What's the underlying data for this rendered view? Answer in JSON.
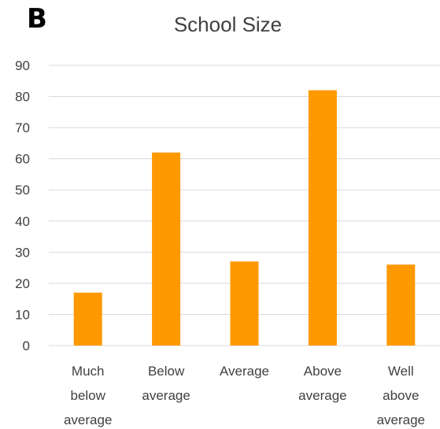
{
  "panel_label": "B",
  "chart_data": {
    "type": "bar",
    "title": "School Size",
    "xlabel": "",
    "ylabel": "",
    "categories": [
      "Much below average",
      "Below average",
      "Average",
      "Above average",
      "Well above average"
    ],
    "category_lines": [
      [
        "Much",
        "below",
        "average"
      ],
      [
        "Below",
        "average"
      ],
      [
        "Average"
      ],
      [
        "Above",
        "average"
      ],
      [
        "Well",
        "above",
        "average"
      ]
    ],
    "values": [
      17,
      62,
      27,
      82,
      26
    ],
    "ylim": [
      0,
      90
    ],
    "yticks": [
      0,
      10,
      20,
      30,
      40,
      50,
      60,
      70,
      80,
      90
    ],
    "grid": true,
    "legend": "none",
    "bar_color": "#FF9900",
    "grid_color": "#D9D9D9",
    "text_color": "#404040"
  }
}
